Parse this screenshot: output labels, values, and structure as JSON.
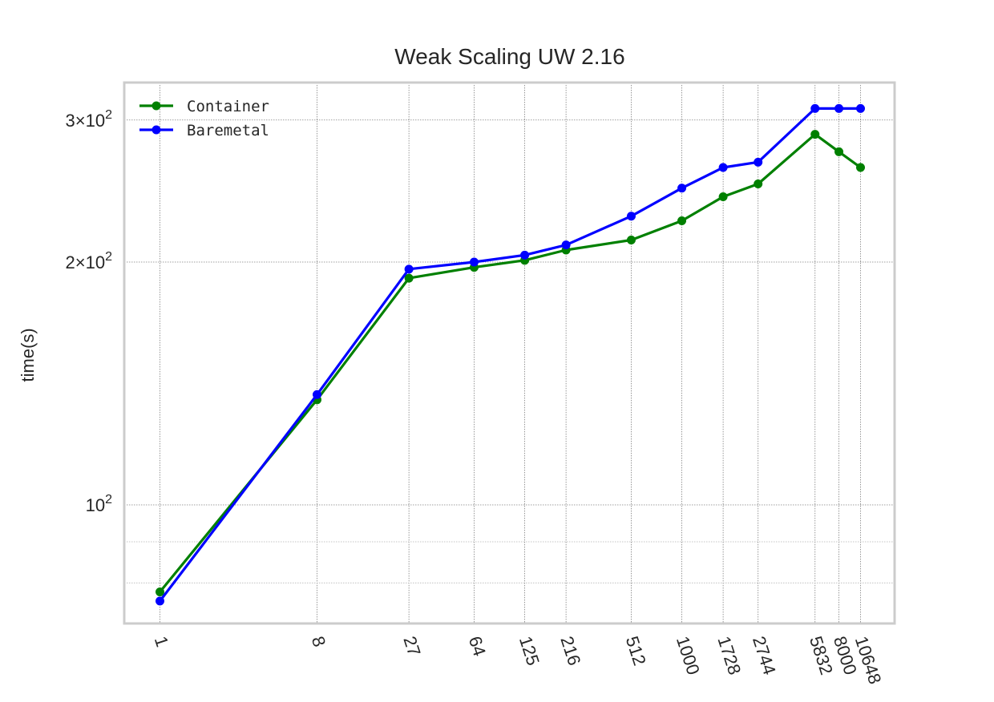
{
  "chart_data": {
    "type": "line",
    "title": "Weak Scaling UW 2.16",
    "xlabel": "",
    "ylabel": "time(s)",
    "x_scale": "log",
    "y_scale": "log",
    "x_ticks": [
      1,
      8,
      27,
      64,
      125,
      216,
      512,
      1000,
      1728,
      2744,
      5832,
      8000,
      10648
    ],
    "x_tick_labels": [
      "1",
      "8",
      "27",
      "64",
      "125",
      "216",
      "512",
      "1000",
      "1728",
      "2744",
      "5832",
      "8000",
      "10648"
    ],
    "y_ticks": [
      {
        "value": 100,
        "base": "10",
        "exp": "2"
      },
      {
        "value": 200,
        "base": "2×10",
        "exp": "2"
      },
      {
        "value": 300,
        "base": "3×10",
        "exp": "2"
      }
    ],
    "ylim": [
      72,
      320
    ],
    "grid": true,
    "legend_position": "top-left",
    "series": [
      {
        "name": "Container",
        "color": "#008000",
        "x": [
          1,
          8,
          27,
          64,
          125,
          216,
          512,
          1000,
          1728,
          2744,
          5832,
          8000,
          10648
        ],
        "y": [
          78,
          135,
          191,
          197,
          201,
          207,
          213,
          225,
          241,
          250,
          288,
          274,
          262
        ]
      },
      {
        "name": "Baremetal",
        "color": "#0000ff",
        "x": [
          1,
          8,
          27,
          64,
          125,
          216,
          512,
          1000,
          1728,
          2744,
          5832,
          8000,
          10648
        ],
        "y": [
          76,
          137,
          196,
          200,
          204,
          210,
          228,
          247,
          262,
          266,
          310,
          310,
          310
        ]
      }
    ]
  }
}
